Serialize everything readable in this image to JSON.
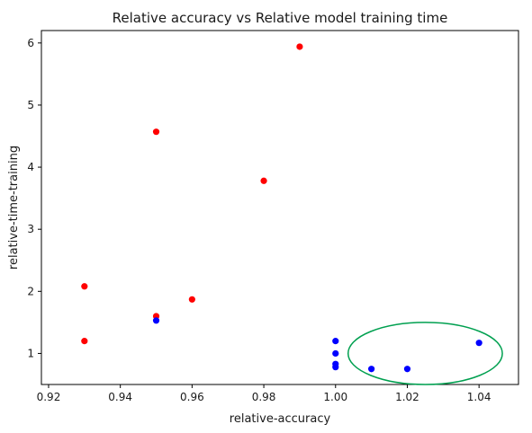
{
  "chart_data": {
    "type": "scatter",
    "title": "Relative accuracy vs Relative model training time",
    "xlabel": "relative-accuracy",
    "ylabel": "relative-time-training",
    "xlim": [
      0.918,
      1.051
    ],
    "ylim": [
      0.5,
      6.2
    ],
    "xticks": [
      "0.92",
      "0.94",
      "0.96",
      "0.98",
      "1.00",
      "1.02",
      "1.04"
    ],
    "yticks": [
      "1",
      "2",
      "3",
      "4",
      "5",
      "6"
    ],
    "grid": false,
    "series": [
      {
        "color": "#ff0000",
        "points": [
          {
            "x": 0.93,
            "y": 1.2
          },
          {
            "x": 0.93,
            "y": 2.08
          },
          {
            "x": 0.95,
            "y": 1.6
          },
          {
            "x": 0.95,
            "y": 4.57
          },
          {
            "x": 0.96,
            "y": 1.87
          },
          {
            "x": 0.98,
            "y": 3.78
          },
          {
            "x": 0.99,
            "y": 5.94
          }
        ]
      },
      {
        "color": "#0000ff",
        "points": [
          {
            "x": 0.95,
            "y": 1.53
          },
          {
            "x": 1.0,
            "y": 1.2
          },
          {
            "x": 1.0,
            "y": 1.0
          },
          {
            "x": 1.0,
            "y": 0.83
          },
          {
            "x": 1.0,
            "y": 0.78
          },
          {
            "x": 1.01,
            "y": 0.75
          },
          {
            "x": 1.02,
            "y": 0.75
          },
          {
            "x": 1.04,
            "y": 1.17
          }
        ]
      }
    ],
    "annotations": [
      {
        "type": "ellipse",
        "color": "#00a050",
        "center": {
          "x": 1.025,
          "y": 1.0
        },
        "rx": 0.0215,
        "ry": 0.5
      }
    ]
  }
}
